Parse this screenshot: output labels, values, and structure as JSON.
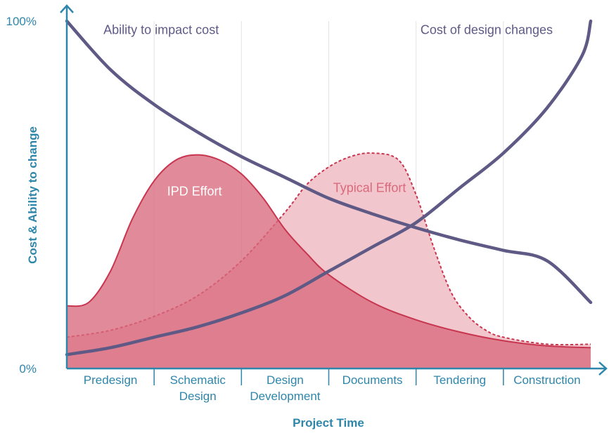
{
  "chart_data": {
    "type": "area",
    "xlabel": "Project Time",
    "ylabel": "Cost & Ability to change",
    "y_ticks": [
      "0%",
      "100%"
    ],
    "ylim": [
      0,
      100
    ],
    "xlim": [
      0,
      6
    ],
    "categories": [
      "Predesign",
      "Schematic Design",
      "Design Development",
      "Documents",
      "Tendering",
      "Construction"
    ],
    "category_lines": [
      [
        "Predesign"
      ],
      [
        "Schematic",
        "Design"
      ],
      [
        "Design",
        "Development"
      ],
      [
        "Documents"
      ],
      [
        "Tendering"
      ],
      [
        "Construction"
      ]
    ],
    "grid": "vertical",
    "series": [
      {
        "name": "Ability to impact cost",
        "style": "line",
        "color": "#5f5a85",
        "points": [
          [
            0,
            100
          ],
          [
            0.5,
            86
          ],
          [
            1,
            76
          ],
          [
            1.5,
            68
          ],
          [
            2,
            61
          ],
          [
            2.5,
            55
          ],
          [
            3,
            49
          ],
          [
            3.5,
            44.5
          ],
          [
            4,
            40.5
          ],
          [
            4.5,
            37
          ],
          [
            5,
            34
          ],
          [
            5.5,
            31
          ],
          [
            6,
            19
          ]
        ]
      },
      {
        "name": "Cost of design changes",
        "style": "line",
        "color": "#5f5a85",
        "points": [
          [
            0,
            4
          ],
          [
            0.5,
            6
          ],
          [
            1,
            9
          ],
          [
            1.5,
            12
          ],
          [
            2,
            16
          ],
          [
            2.5,
            21
          ],
          [
            3,
            28
          ],
          [
            3.5,
            35
          ],
          [
            4,
            42
          ],
          [
            4.5,
            52
          ],
          [
            5,
            62
          ],
          [
            5.5,
            75
          ],
          [
            5.9,
            90
          ],
          [
            6,
            100
          ]
        ]
      },
      {
        "name": "IPD Effort",
        "style": "area",
        "color": "#c8354f",
        "fill": "#d9697c",
        "points": [
          [
            0,
            18
          ],
          [
            0.25,
            19
          ],
          [
            0.5,
            28
          ],
          [
            0.75,
            43
          ],
          [
            1,
            54
          ],
          [
            1.25,
            60
          ],
          [
            1.5,
            61.5
          ],
          [
            1.75,
            60
          ],
          [
            2,
            56
          ],
          [
            2.25,
            49
          ],
          [
            2.5,
            40
          ],
          [
            2.75,
            33
          ],
          [
            3,
            27
          ],
          [
            3.5,
            19
          ],
          [
            4,
            14
          ],
          [
            4.5,
            10.5
          ],
          [
            5,
            8
          ],
          [
            5.5,
            6.5
          ],
          [
            6,
            6
          ]
        ]
      },
      {
        "name": "Typical Effort",
        "style": "dashed-area",
        "color": "#c8354f",
        "fill": "#f2c6cd",
        "points": [
          [
            0,
            9
          ],
          [
            0.5,
            11
          ],
          [
            1,
            15
          ],
          [
            1.5,
            21
          ],
          [
            2,
            31
          ],
          [
            2.5,
            45
          ],
          [
            2.75,
            53
          ],
          [
            3,
            58
          ],
          [
            3.25,
            61
          ],
          [
            3.5,
            62
          ],
          [
            3.8,
            60
          ],
          [
            4,
            50
          ],
          [
            4.2,
            35
          ],
          [
            4.4,
            22
          ],
          [
            4.6,
            15
          ],
          [
            4.8,
            11
          ],
          [
            5,
            9
          ],
          [
            5.5,
            7
          ],
          [
            6,
            7
          ]
        ]
      }
    ],
    "annotations": [
      {
        "text": "Ability to impact cost",
        "at": [
          0.42,
          97.5
        ],
        "color": "#5f5a85"
      },
      {
        "text": "Cost of design changes",
        "at": [
          4.05,
          97.5
        ],
        "color": "#5f5a85"
      },
      {
        "text": "IPD Effort",
        "at": [
          1.15,
          51
        ],
        "color": "#ffffff"
      },
      {
        "text": "Typical Effort",
        "at": [
          3.05,
          52
        ],
        "color": "#d9697c"
      }
    ],
    "axis_color": "#2e86ab"
  }
}
